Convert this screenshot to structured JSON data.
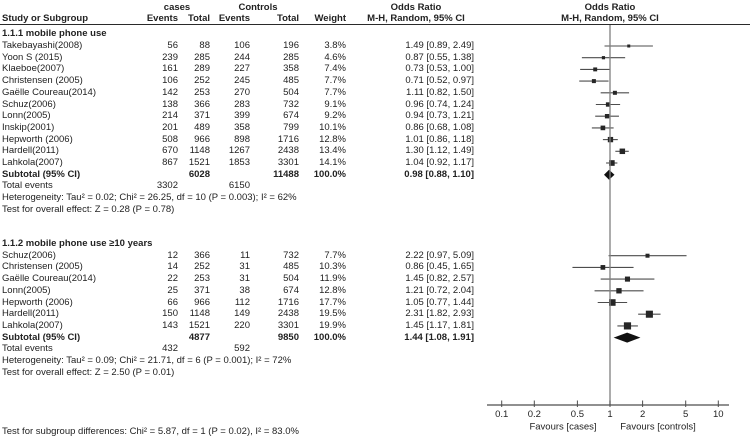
{
  "header": {
    "group_cases": "cases",
    "group_controls": "Controls",
    "odds_ratio_left": "Odds Ratio",
    "odds_ratio_right": "Odds Ratio",
    "col_study": "Study or Subgroup",
    "col_cases_events": "Events",
    "col_cases_total": "Total",
    "col_controls_events": "Events",
    "col_controls_total": "Total",
    "col_weight": "Weight",
    "col_mh_left": "M-H, Random, 95% CI",
    "col_mh_right": "M-H, Random, 95% CI"
  },
  "footer": {
    "subgroup_diff": "Test for subgroup differences: Chi² = 5.87, df = 1 (P = 0.02), I² = 83.0%"
  },
  "chart_data": {
    "type": "forest",
    "x_scale": "log",
    "x_center": 1,
    "axis": {
      "ticks": [
        "0.1",
        "0.2",
        "0.5",
        "1",
        "2",
        "5",
        "10"
      ],
      "tick_values": [
        0.1,
        0.2,
        0.5,
        1,
        2,
        5,
        10
      ],
      "favours_left": "Favours [cases]",
      "favours_right": "Favours [controls]"
    },
    "colors": {
      "text": "#222222",
      "ci_line": "#4d4d4d",
      "square": "#262626",
      "diamond": "#111111",
      "null_line": "#7f7f7f",
      "axis": "#4d4d4d"
    },
    "sections": [
      {
        "heading": "1.1.1 mobile phone use",
        "studies": [
          {
            "name": "Takebayashi(2008)",
            "cases_events": "56",
            "cases_total": "88",
            "controls_events": "106",
            "controls_total": "196",
            "weight": "3.8%",
            "ci_text": "1.49 [0.89, 2.49]",
            "or": 1.49,
            "low": 0.89,
            "high": 2.49
          },
          {
            "name": "Yoon S (2015)",
            "cases_events": "239",
            "cases_total": "285",
            "controls_events": "244",
            "controls_total": "285",
            "weight": "4.6%",
            "ci_text": "0.87 [0.55, 1.38]",
            "or": 0.87,
            "low": 0.55,
            "high": 1.38
          },
          {
            "name": "Klaeboe(2007)",
            "cases_events": "161",
            "cases_total": "289",
            "controls_events": "227",
            "controls_total": "358",
            "weight": "7.4%",
            "ci_text": "0.73 [0.53, 1.00]",
            "or": 0.73,
            "low": 0.53,
            "high": 1.0
          },
          {
            "name": "Christensen (2005)",
            "cases_events": "106",
            "cases_total": "252",
            "controls_events": "245",
            "controls_total": "485",
            "weight": "7.7%",
            "ci_text": "0.71 [0.52, 0.97]",
            "or": 0.71,
            "low": 0.52,
            "high": 0.97
          },
          {
            "name": "Gaëlle Coureau(2014)",
            "cases_events": "142",
            "cases_total": "253",
            "controls_events": "270",
            "controls_total": "504",
            "weight": "7.7%",
            "ci_text": "1.11 [0.82, 1.50]",
            "or": 1.11,
            "low": 0.82,
            "high": 1.5
          },
          {
            "name": "Schuz(2006)",
            "cases_events": "138",
            "cases_total": "366",
            "controls_events": "283",
            "controls_total": "732",
            "weight": "9.1%",
            "ci_text": "0.96 [0.74, 1.24]",
            "or": 0.96,
            "low": 0.74,
            "high": 1.24
          },
          {
            "name": "Lonn(2005)",
            "cases_events": "214",
            "cases_total": "371",
            "controls_events": "399",
            "controls_total": "674",
            "weight": "9.2%",
            "ci_text": "0.94 [0.73, 1.21]",
            "or": 0.94,
            "low": 0.73,
            "high": 1.21
          },
          {
            "name": "Inskip(2001)",
            "cases_events": "201",
            "cases_total": "489",
            "controls_events": "358",
            "controls_total": "799",
            "weight": "10.1%",
            "ci_text": "0.86 [0.68, 1.08]",
            "or": 0.86,
            "low": 0.68,
            "high": 1.08
          },
          {
            "name": "Hepworth (2006)",
            "cases_events": "508",
            "cases_total": "966",
            "controls_events": "898",
            "controls_total": "1716",
            "weight": "12.8%",
            "ci_text": "1.01 [0.86, 1.18]",
            "or": 1.01,
            "low": 0.86,
            "high": 1.18
          },
          {
            "name": "Hardell(2011)",
            "cases_events": "670",
            "cases_total": "1148",
            "controls_events": "1267",
            "controls_total": "2438",
            "weight": "13.4%",
            "ci_text": "1.30 [1.12, 1.49]",
            "or": 1.3,
            "low": 1.12,
            "high": 1.49
          },
          {
            "name": "Lahkola(2007)",
            "cases_events": "867",
            "cases_total": "1521",
            "controls_events": "1853",
            "controls_total": "3301",
            "weight": "14.1%",
            "ci_text": "1.04 [0.92, 1.17]",
            "or": 1.04,
            "low": 0.92,
            "high": 1.17
          }
        ],
        "subtotal": {
          "label": "Subtotal (95% CI)",
          "cases_total": "6028",
          "controls_total": "11488",
          "weight": "100.0%",
          "ci_text": "0.98 [0.88, 1.10]",
          "or": 0.98,
          "low": 0.88,
          "high": 1.1
        },
        "total_events": {
          "label": "Total events",
          "cases": "3302",
          "controls": "6150"
        },
        "heterogeneity": "Heterogeneity: Tau² = 0.02; Chi² = 26.25, df = 10 (P = 0.003); I² = 62%",
        "overall_effect": "Test for overall effect: Z = 0.28 (P = 0.78)"
      },
      {
        "heading": "1.1.2 mobile phone use ≥10 years",
        "studies": [
          {
            "name": "Schuz(2006)",
            "cases_events": "12",
            "cases_total": "366",
            "controls_events": "11",
            "controls_total": "732",
            "weight": "7.7%",
            "ci_text": "2.22 [0.97, 5.09]",
            "or": 2.22,
            "low": 0.97,
            "high": 5.09
          },
          {
            "name": "Christensen (2005)",
            "cases_events": "14",
            "cases_total": "252",
            "controls_events": "31",
            "controls_total": "485",
            "weight": "10.3%",
            "ci_text": "0.86 [0.45, 1.65]",
            "or": 0.86,
            "low": 0.45,
            "high": 1.65
          },
          {
            "name": "Gaëlle Coureau(2014)",
            "cases_events": "22",
            "cases_total": "253",
            "controls_events": "31",
            "controls_total": "504",
            "weight": "11.9%",
            "ci_text": "1.45 [0.82, 2.57]",
            "or": 1.45,
            "low": 0.82,
            "high": 2.57
          },
          {
            "name": "Lonn(2005)",
            "cases_events": "25",
            "cases_total": "371",
            "controls_events": "38",
            "controls_total": "674",
            "weight": "12.8%",
            "ci_text": "1.21 [0.72, 2.04]",
            "or": 1.21,
            "low": 0.72,
            "high": 2.04
          },
          {
            "name": "Hepworth (2006)",
            "cases_events": "66",
            "cases_total": "966",
            "controls_events": "112",
            "controls_total": "1716",
            "weight": "17.7%",
            "ci_text": "1.05 [0.77, 1.44]",
            "or": 1.05,
            "low": 0.77,
            "high": 1.44
          },
          {
            "name": "Hardell(2011)",
            "cases_events": "150",
            "cases_total": "1148",
            "controls_events": "149",
            "controls_total": "2438",
            "weight": "19.5%",
            "ci_text": "2.31 [1.82, 2.93]",
            "or": 2.31,
            "low": 1.82,
            "high": 2.93
          },
          {
            "name": "Lahkola(2007)",
            "cases_events": "143",
            "cases_total": "1521",
            "controls_events": "220",
            "controls_total": "3301",
            "weight": "19.9%",
            "ci_text": "1.45 [1.17, 1.81]",
            "or": 1.45,
            "low": 1.17,
            "high": 1.81
          }
        ],
        "subtotal": {
          "label": "Subtotal (95% CI)",
          "cases_total": "4877",
          "controls_total": "9850",
          "weight": "100.0%",
          "ci_text": "1.44 [1.08, 1.91]",
          "or": 1.44,
          "low": 1.08,
          "high": 1.91
        },
        "total_events": {
          "label": "Total events",
          "cases": "432",
          "controls": "592"
        },
        "heterogeneity": "Heterogeneity: Tau² = 0.09; Chi² = 21.71, df = 6 (P = 0.001); I² = 72%",
        "overall_effect": "Test for overall effect: Z = 2.50 (P = 0.01)"
      }
    ]
  }
}
